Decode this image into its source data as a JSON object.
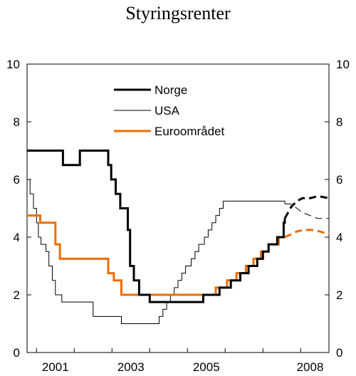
{
  "chart_data": {
    "type": "line",
    "title": "Styringsrenter",
    "xlim": [
      2000.75,
      2008.75
    ],
    "ylim": [
      0,
      10
    ],
    "y_ticks": [
      0,
      2,
      4,
      6,
      8,
      10
    ],
    "x_ticks": [
      {
        "value": 2001.5,
        "label": "2001"
      },
      {
        "value": 2003.5,
        "label": "2003"
      },
      {
        "value": 2005.5,
        "label": "2005"
      },
      {
        "value": 2008.25,
        "label": "2008"
      }
    ],
    "x_minor_ticks": [
      2001,
      2002,
      2003,
      2004,
      2005,
      2006,
      2007,
      2008
    ],
    "right_axis": true,
    "grid": false,
    "legend_position": "top-center",
    "series": [
      {
        "name": "Norge",
        "color": "#000000",
        "width": 3,
        "style": "step",
        "points": [
          [
            2000.75,
            7.0
          ],
          [
            2001.7,
            6.5
          ],
          [
            2002.15,
            7.0
          ],
          [
            2002.9,
            6.5
          ],
          [
            2002.98,
            6.0
          ],
          [
            2003.1,
            5.5
          ],
          [
            2003.22,
            5.0
          ],
          [
            2003.42,
            4.25
          ],
          [
            2003.48,
            3.0
          ],
          [
            2003.58,
            2.5
          ],
          [
            2003.72,
            2.0
          ],
          [
            2004.0,
            1.75
          ],
          [
            2005.42,
            2.0
          ],
          [
            2005.85,
            2.25
          ],
          [
            2006.15,
            2.5
          ],
          [
            2006.4,
            2.75
          ],
          [
            2006.62,
            3.0
          ],
          [
            2006.85,
            3.25
          ],
          [
            2007.0,
            3.5
          ],
          [
            2007.15,
            3.75
          ],
          [
            2007.38,
            4.0
          ],
          [
            2007.55,
            4.5
          ],
          [
            2007.58,
            4.65
          ]
        ],
        "forecast_dashed": [
          [
            2007.75,
            5.05
          ],
          [
            2007.9,
            5.25
          ],
          [
            2008.05,
            5.35
          ],
          [
            2008.25,
            5.35
          ],
          [
            2008.4,
            5.4
          ],
          [
            2008.55,
            5.4
          ],
          [
            2008.75,
            5.35
          ]
        ]
      },
      {
        "name": "USA",
        "color": "#000000",
        "width": 1,
        "style": "step",
        "points": [
          [
            2000.75,
            6.0
          ],
          [
            2000.83,
            5.5
          ],
          [
            2000.92,
            5.0
          ],
          [
            2001.0,
            4.5
          ],
          [
            2001.05,
            4.0
          ],
          [
            2001.12,
            3.75
          ],
          [
            2001.25,
            3.5
          ],
          [
            2001.33,
            3.0
          ],
          [
            2001.42,
            2.5
          ],
          [
            2001.5,
            2.0
          ],
          [
            2001.67,
            1.75
          ],
          [
            2002.5,
            1.25
          ],
          [
            2003.25,
            1.0
          ],
          [
            2004.25,
            1.25
          ],
          [
            2004.35,
            1.5
          ],
          [
            2004.45,
            1.75
          ],
          [
            2004.55,
            2.0
          ],
          [
            2004.65,
            2.25
          ],
          [
            2004.75,
            2.5
          ],
          [
            2004.85,
            2.75
          ],
          [
            2004.95,
            3.0
          ],
          [
            2005.1,
            3.25
          ],
          [
            2005.2,
            3.5
          ],
          [
            2005.3,
            3.75
          ],
          [
            2005.45,
            4.0
          ],
          [
            2005.55,
            4.25
          ],
          [
            2005.65,
            4.5
          ],
          [
            2005.75,
            4.75
          ],
          [
            2005.85,
            5.0
          ],
          [
            2005.95,
            5.25
          ],
          [
            2007.35,
            5.25
          ],
          [
            2007.58,
            5.15
          ]
        ],
        "forecast_dashed": [
          [
            2007.75,
            5.15
          ],
          [
            2007.9,
            5.0
          ],
          [
            2008.05,
            4.85
          ],
          [
            2008.25,
            4.75
          ],
          [
            2008.45,
            4.65
          ],
          [
            2008.75,
            4.65
          ]
        ]
      },
      {
        "name": "Euroområdet",
        "color": "#ef6c00",
        "width": 3,
        "style": "step",
        "points": [
          [
            2000.75,
            4.75
          ],
          [
            2001.1,
            4.5
          ],
          [
            2001.5,
            3.75
          ],
          [
            2001.62,
            3.25
          ],
          [
            2002.7,
            3.25
          ],
          [
            2002.9,
            2.75
          ],
          [
            2003.05,
            2.5
          ],
          [
            2003.25,
            2.0
          ],
          [
            2005.75,
            2.25
          ],
          [
            2006.05,
            2.5
          ],
          [
            2006.3,
            2.75
          ],
          [
            2006.55,
            3.0
          ],
          [
            2006.75,
            3.25
          ],
          [
            2006.95,
            3.5
          ],
          [
            2007.15,
            3.75
          ],
          [
            2007.42,
            4.0
          ],
          [
            2007.58,
            4.0
          ]
        ],
        "forecast_dashed": [
          [
            2007.75,
            4.1
          ],
          [
            2007.9,
            4.2
          ],
          [
            2008.1,
            4.25
          ],
          [
            2008.3,
            4.25
          ],
          [
            2008.5,
            4.2
          ],
          [
            2008.75,
            4.1
          ]
        ]
      }
    ]
  }
}
